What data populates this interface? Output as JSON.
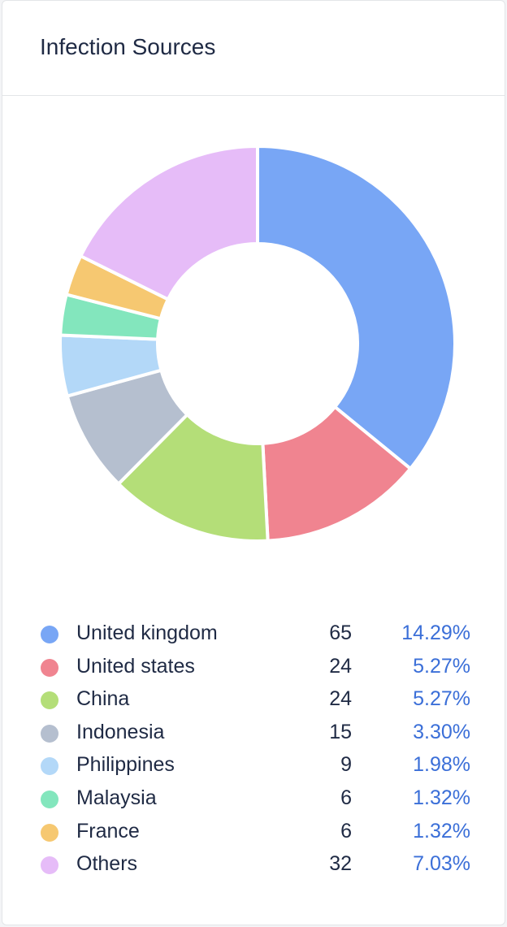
{
  "header": {
    "title": "Infection Sources"
  },
  "colors": {
    "United kingdom": "#78a6f5",
    "United states": "#f08490",
    "China": "#b4de78",
    "Indonesia": "#b5bfcf",
    "Philippines": "#b3d8f8",
    "Malaysia": "#83e6bd",
    "France": "#f6c871",
    "Others": "#e6bcf8",
    "percent_text": "#3b6fd8"
  },
  "chart_data": {
    "type": "pie",
    "variant": "donut",
    "title": "Infection Sources",
    "categories": [
      "United kingdom",
      "United states",
      "China",
      "Indonesia",
      "Philippines",
      "Malaysia",
      "France",
      "Others"
    ],
    "values": [
      65,
      24,
      24,
      15,
      9,
      6,
      6,
      32
    ],
    "percentages": [
      "14.29%",
      "5.27%",
      "5.27%",
      "3.30%",
      "1.98%",
      "1.32%",
      "1.32%",
      "7.03%"
    ],
    "legend_position": "bottom"
  }
}
